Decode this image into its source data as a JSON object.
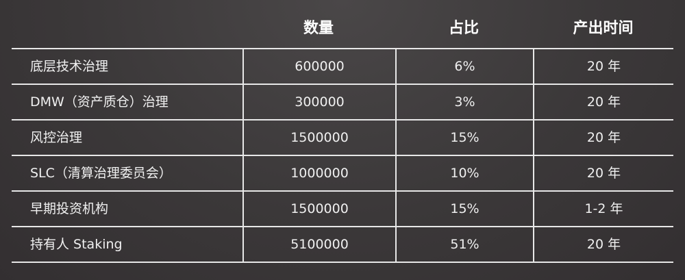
{
  "header": {
    "quantity": "数量",
    "share": "占比",
    "period": "产出时间"
  },
  "rows": [
    {
      "name": "底层技术治理",
      "quantity": "600000",
      "share": "6%",
      "period": "20 年"
    },
    {
      "name": "DMW（资产质仓）治理",
      "quantity": "300000",
      "share": "3%",
      "period": "20 年"
    },
    {
      "name": "风控治理",
      "quantity": "1500000",
      "share": "15%",
      "period": "20 年"
    },
    {
      "name": "SLC（清算治理委员会）",
      "quantity": "1000000",
      "share": "10%",
      "period": "20 年"
    },
    {
      "name": "早期投资机构",
      "quantity": "1500000",
      "share": "15%",
      "period": "1-2 年"
    },
    {
      "name": "持有人 Staking",
      "quantity": "5100000",
      "share": "51%",
      "period": "20 年"
    }
  ]
}
